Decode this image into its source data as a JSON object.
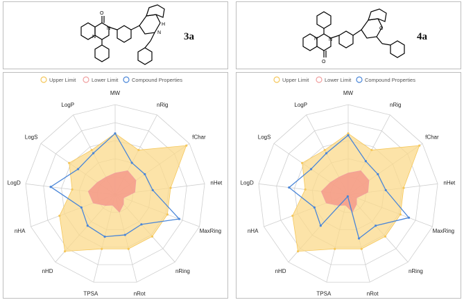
{
  "compound_a": {
    "label": "3a"
  },
  "compound_b": {
    "label": "4a"
  },
  "legend": {
    "upper": "Upper Limit",
    "lower": "Lower Limit",
    "compound": "Compound Properties"
  },
  "colors": {
    "upper": "#f5c75a",
    "upper_fill": "#fbd98b",
    "lower": "#f0a0a0",
    "lower_fill": "#f49a8a",
    "compound": "#4a86d8",
    "grid": "#cfcfcf"
  },
  "chart_data": [
    {
      "type": "radar",
      "title": "3a",
      "axes": [
        "MW",
        "nRig",
        "fChar",
        "nHet",
        "MaxRing",
        "nRing",
        "nRot",
        "TPSA",
        "nHD",
        "nHA",
        "LogD",
        "LogS",
        "LogP"
      ],
      "rings": 5,
      "series": [
        {
          "name": "Upper Limit",
          "values": [
            0.68,
            0.56,
            0.96,
            0.62,
            0.62,
            0.62,
            0.62,
            0.62,
            0.84,
            0.66,
            0.48,
            0.62,
            0.56
          ]
        },
        {
          "name": "Lower Limit",
          "values": [
            0.24,
            0.3,
            0.28,
            0.22,
            0.1,
            0.14,
            0.2,
            0.12,
            0.16,
            0.26,
            0.3,
            0.24,
            0.22
          ]
        },
        {
          "name": "Compound Properties",
          "values": [
            0.68,
            0.4,
            0.4,
            0.42,
            0.76,
            0.44,
            0.46,
            0.48,
            0.46,
            0.4,
            0.72,
            0.5,
            0.52
          ]
        }
      ]
    },
    {
      "type": "radar",
      "title": "4a",
      "axes": [
        "MW",
        "nRig",
        "fChar",
        "nHet",
        "MaxRing",
        "nRing",
        "nRot",
        "TPSA",
        "nHD",
        "nHA",
        "LogD",
        "LogS",
        "LogP"
      ],
      "rings": 5,
      "series": [
        {
          "name": "Upper Limit",
          "values": [
            0.68,
            0.56,
            0.96,
            0.62,
            0.62,
            0.62,
            0.62,
            0.62,
            0.84,
            0.66,
            0.48,
            0.62,
            0.56
          ]
        },
        {
          "name": "Lower Limit",
          "values": [
            0.24,
            0.3,
            0.28,
            0.22,
            0.1,
            0.14,
            0.2,
            0.12,
            0.16,
            0.26,
            0.3,
            0.24,
            0.22
          ]
        },
        {
          "name": "Compound Properties",
          "values": [
            0.66,
            0.42,
            0.4,
            0.42,
            0.72,
            0.46,
            0.5,
            0.02,
            0.46,
            0.4,
            0.66,
            0.5,
            0.52
          ]
        }
      ]
    }
  ]
}
